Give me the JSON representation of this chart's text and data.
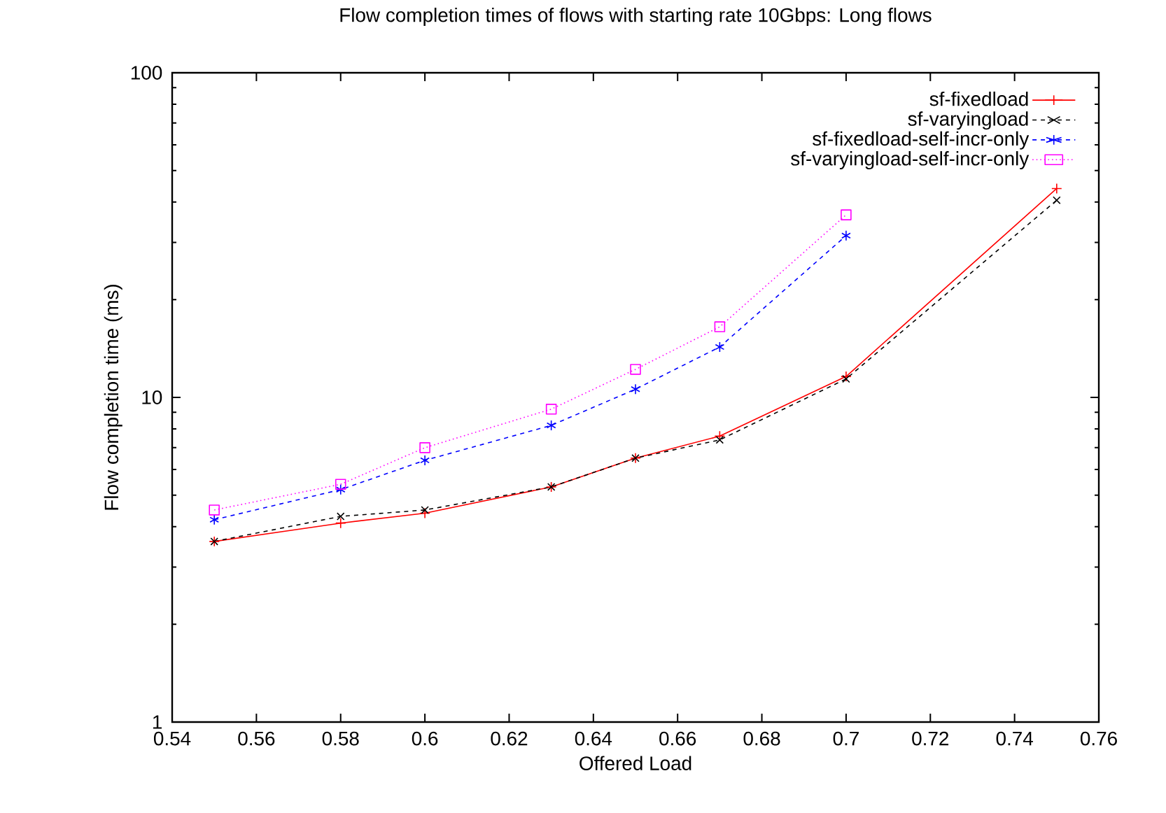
{
  "chart_data": {
    "type": "line",
    "title": "Flow completion times of flows with starting rate 10Gbps: Long flows",
    "xlabel": "Offered Load",
    "ylabel": "Flow completion time (ms)",
    "xlim": [
      0.54,
      0.76
    ],
    "xticks": [
      0.54,
      0.56,
      0.58,
      0.6,
      0.62,
      0.64,
      0.66,
      0.68,
      0.7,
      0.72,
      0.74,
      0.76
    ],
    "ylim": [
      1,
      100
    ],
    "yticks": [
      1,
      10,
      100
    ],
    "log": "y",
    "grid": false,
    "legend": "top right",
    "series": [
      {
        "name": "sf-fixedload",
        "color": "#ff0000",
        "marker": "cross",
        "line_style": "solid",
        "x": [
          0.55,
          0.58,
          0.6,
          0.63,
          0.65,
          0.67,
          0.7,
          0.75
        ],
        "values": [
          3.6,
          4.1,
          4.4,
          5.3,
          6.5,
          7.6,
          11.6,
          44
        ]
      },
      {
        "name": "sf-varyingload",
        "color": "#000000",
        "marker": "x",
        "line_style": "dashed",
        "x": [
          0.55,
          0.58,
          0.6,
          0.63,
          0.65,
          0.67,
          0.7,
          0.75
        ],
        "values": [
          3.6,
          4.3,
          4.5,
          5.3,
          6.5,
          7.4,
          11.4,
          40.5
        ]
      },
      {
        "name": "sf-fixedload-self-incr-only",
        "color": "#0000ff",
        "marker": "cross",
        "line_style": "dashed",
        "x": [
          0.55,
          0.58,
          0.6,
          0.63,
          0.65,
          0.67,
          0.7
        ],
        "values": [
          4.2,
          5.2,
          6.4,
          8.2,
          10.6,
          14.3,
          31.5
        ]
      },
      {
        "name": "sf-varyingload-self-incr-only",
        "color": "#ff00ff",
        "marker": "square",
        "line_style": "dotted",
        "x": [
          0.55,
          0.58,
          0.6,
          0.63,
          0.65,
          0.67,
          0.7
        ],
        "values": [
          4.5,
          5.4,
          7.0,
          9.2,
          12.2,
          16.5,
          36.5
        ]
      }
    ]
  }
}
